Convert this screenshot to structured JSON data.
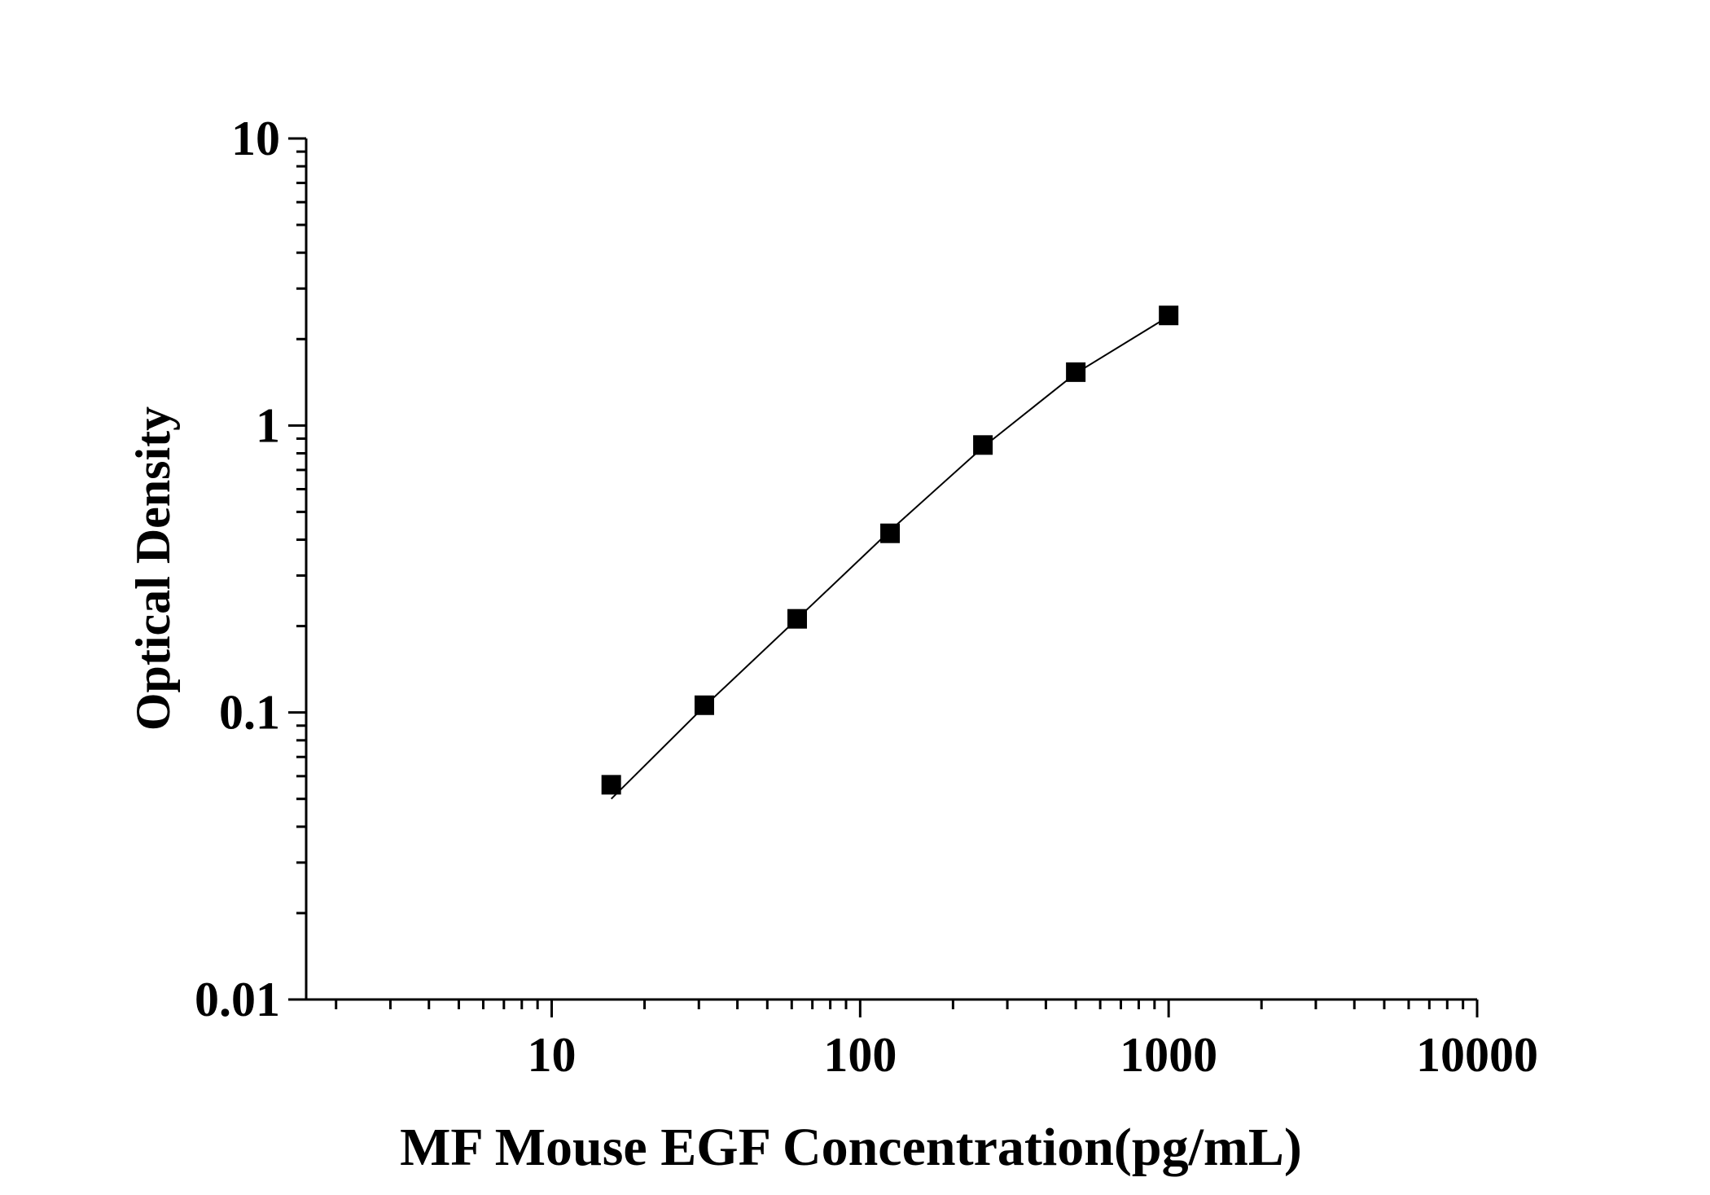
{
  "chart_data": {
    "type": "scatter",
    "xlabel": "MF Mouse EGF Concentration(pg/mL)",
    "ylabel": "Optical Density",
    "x_scale": "log",
    "y_scale": "log",
    "xlim": [
      1.6,
      10000
    ],
    "ylim": [
      0.01,
      10
    ],
    "x_tick_labels": [
      "10",
      "100",
      "1000",
      "10000"
    ],
    "x_ticks": [
      10,
      100,
      1000,
      10000
    ],
    "y_tick_labels": [
      "0.01",
      "0.1",
      "1",
      "10"
    ],
    "y_ticks": [
      0.01,
      0.1,
      1,
      10
    ],
    "grid": false,
    "series": [
      {
        "x": [
          15.6,
          31.25,
          62.5,
          125,
          250,
          500,
          1000
        ],
        "y": [
          0.056,
          0.106,
          0.212,
          0.421,
          0.855,
          1.534,
          2.418
        ],
        "marker": "square",
        "color": "#000000"
      }
    ],
    "fit_line": {
      "x": [
        15.6,
        31.25,
        62.5,
        125,
        250,
        500,
        1000
      ],
      "y": [
        0.05,
        0.105,
        0.212,
        0.43,
        0.84,
        1.52,
        2.4
      ],
      "color": "#000000"
    }
  }
}
